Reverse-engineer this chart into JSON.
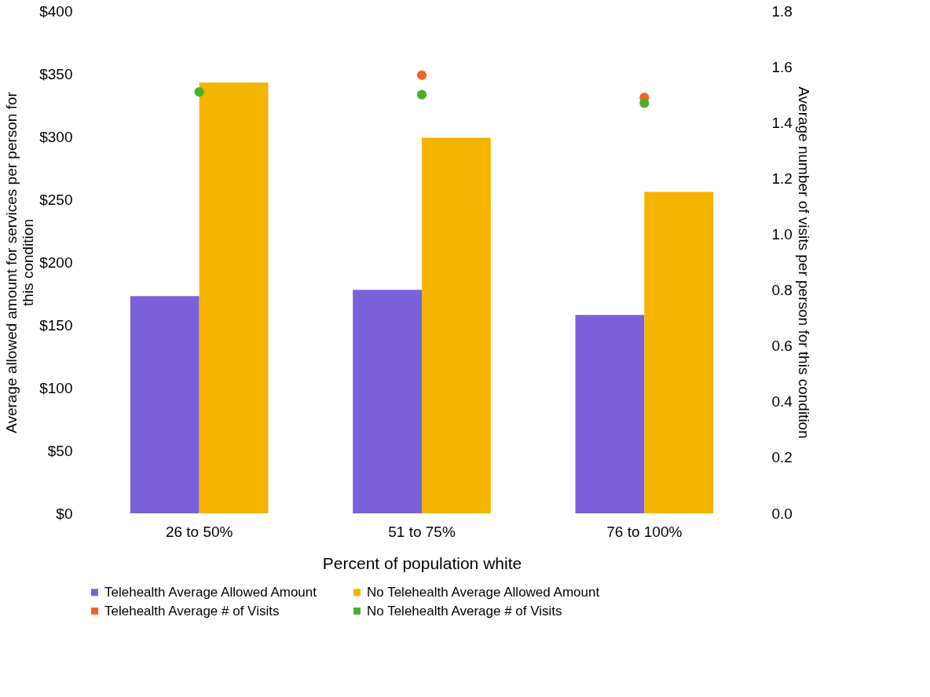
{
  "chart_data": {
    "type": "bar",
    "xlabel": "Percent of population white",
    "ylabel": "Average allowed amount for services per person for this condition",
    "y2label": "Average number of visits per person for this condition",
    "categories": [
      "26 to 50%",
      "51 to 75%",
      "76 to 100%"
    ],
    "series": [
      {
        "name": "Telehealth Average Allowed Amount",
        "color": "#7b61d9",
        "values": [
          173,
          178,
          158
        ]
      },
      {
        "name": "No Telehealth Average Allowed Amount",
        "color": "#f5b400",
        "values": [
          343,
          299,
          256
        ]
      },
      {
        "name": "Telehealth Average # of Visits",
        "type": "scatter",
        "axis": "y2",
        "color": "#f26522",
        "values": [
          null,
          1.57,
          1.49
        ]
      },
      {
        "name": "No Telehealth Average # of Visits",
        "type": "scatter",
        "axis": "y2",
        "color": "#4caf2a",
        "values": [
          1.51,
          1.5,
          1.47
        ]
      }
    ],
    "ylim": [
      0,
      400
    ],
    "yticks": [
      {
        "value": 0,
        "label": "$0"
      },
      {
        "value": 50,
        "label": "$50"
      },
      {
        "value": 100,
        "label": "$100"
      },
      {
        "value": 150,
        "label": "$150"
      },
      {
        "value": 200,
        "label": "$200"
      },
      {
        "value": 250,
        "label": "$250"
      },
      {
        "value": 300,
        "label": "$300"
      },
      {
        "value": 350,
        "label": "$350"
      },
      {
        "value": 400,
        "label": "$400"
      }
    ],
    "y2lim": [
      0,
      1.8
    ],
    "y2ticks": [
      {
        "value": 0,
        "label": "0.0"
      },
      {
        "value": 0.2,
        "label": "0.2"
      },
      {
        "value": 0.4,
        "label": "0.4"
      },
      {
        "value": 0.6,
        "label": "0.6"
      },
      {
        "value": 0.8,
        "label": "0.8"
      },
      {
        "value": 1.0,
        "label": "1.0"
      },
      {
        "value": 1.2,
        "label": "1.2"
      },
      {
        "value": 1.4,
        "label": "1.4"
      },
      {
        "value": 1.6,
        "label": "1.6"
      },
      {
        "value": 1.8,
        "label": "1.8"
      }
    ],
    "grid": false,
    "legend": "bottom",
    "marker": "circle"
  }
}
